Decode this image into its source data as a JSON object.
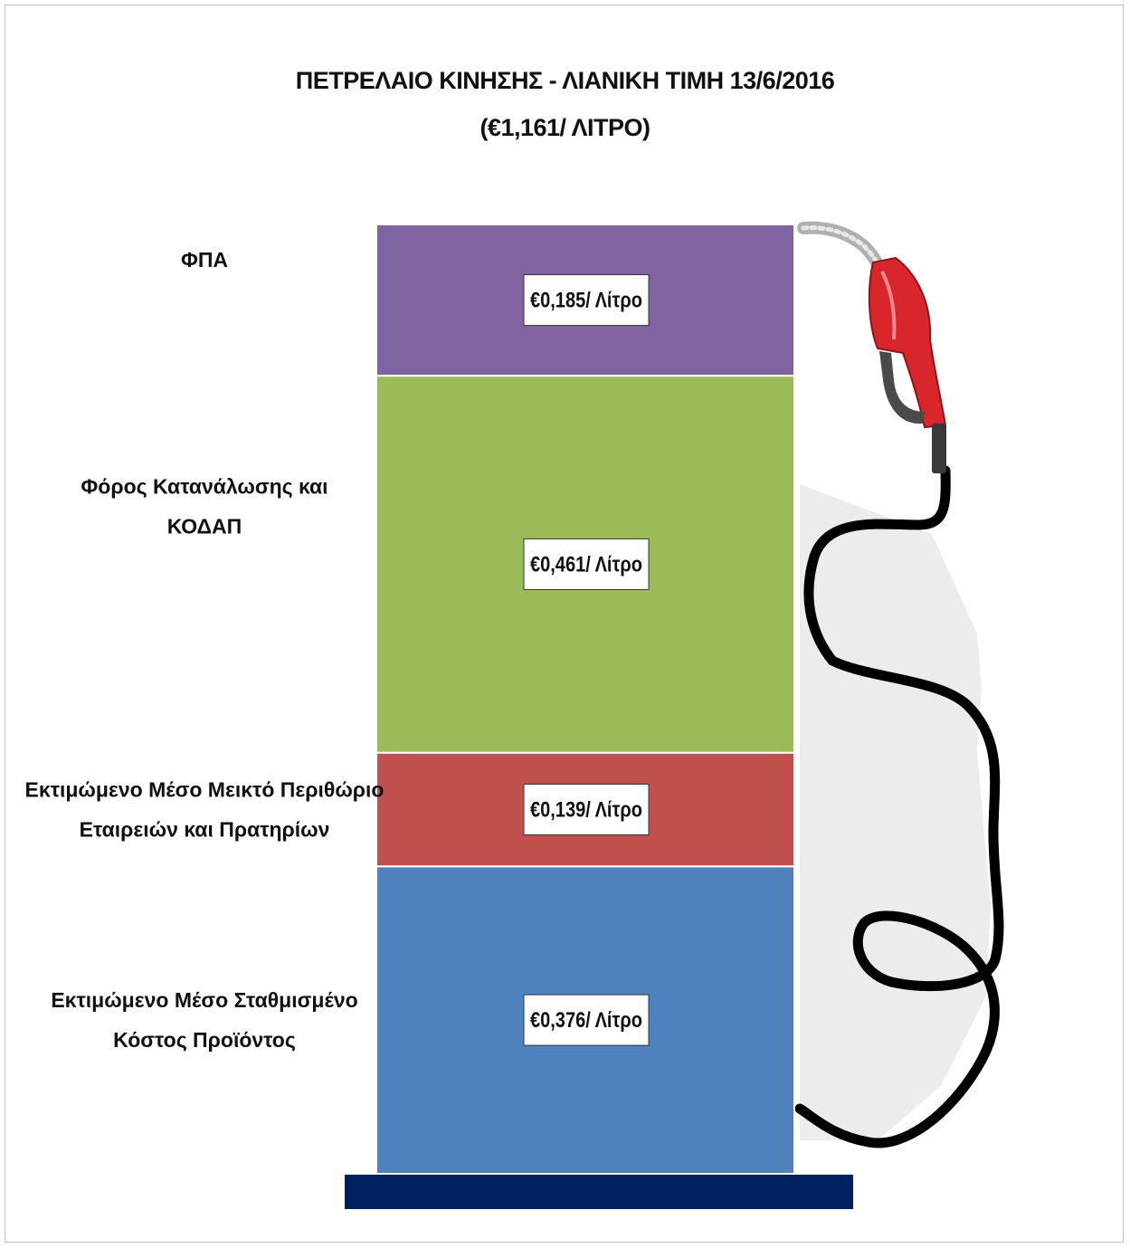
{
  "title": {
    "line1": "ΠΕΤΡΕΛΑΙΟ ΚΙΝΗΣΗΣ - ΛΙΑΝΙΚΗ ΤΙΜΗ 13/6/2016",
    "line2": "(€1,161/ ΛΙΤΡΟ)"
  },
  "chart_data": {
    "type": "bar",
    "stacked": true,
    "unit": "€/Λίτρο",
    "total": 1.161,
    "segments": [
      {
        "category": [
          "Εκτιμώμενο Μέσο Σταθμισμένο",
          "Κόστος Προϊόντος"
        ],
        "value": 0.376,
        "label": "€0,376/ Λίτρο",
        "color": "#4f81bd"
      },
      {
        "category": [
          "Εκτιμώμενο Μέσο Μεικτό Περιθώριο",
          "Εταιρειών και Πρατηρίων"
        ],
        "value": 0.139,
        "label": "€0,139/ Λίτρο",
        "color": "#c0504d"
      },
      {
        "category": [
          "Φόρος Κατανάλωσης και",
          "ΚΟΔΑΠ"
        ],
        "value": 0.461,
        "label": "€0,461/ Λίτρο",
        "color": "#9bbb59"
      },
      {
        "category": [
          "ΦΠΑ"
        ],
        "value": 0.185,
        "label": "€0,185/ Λίτρο",
        "color": "#8064a2"
      }
    ],
    "base_color": "#002060",
    "nozzle_color": "#d9262c",
    "hose_color": "#000000"
  }
}
